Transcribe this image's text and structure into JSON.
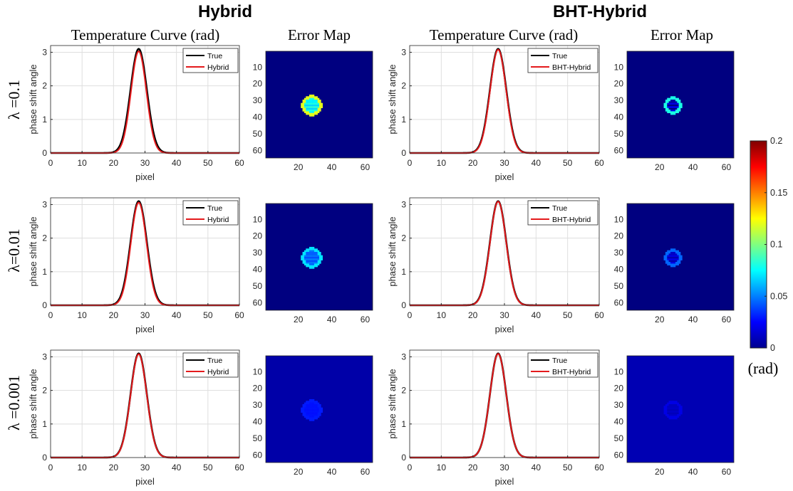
{
  "figure": {
    "section_titles": {
      "left": "Hybrid",
      "right": "BHT-Hybrid"
    },
    "column_titles": {
      "curve": "Temperature Curve (rad)",
      "map": "Error Map"
    },
    "row_labels": [
      "λ =0.1",
      "λ=0.01",
      "λ =0.001"
    ],
    "colorbar": {
      "min": 0,
      "max": 0.2,
      "ticks": [
        "0",
        "0.05",
        "0.1",
        "0.15",
        "0.2"
      ],
      "unit": "(rad)",
      "colormap": "jet"
    }
  },
  "chart_data": [
    {
      "type": "line",
      "method": "Hybrid",
      "lambda": "0.1",
      "xlabel": "pixel",
      "ylabel": "phase shift angle",
      "xlim": [
        0,
        60
      ],
      "ylim": [
        0,
        3.2
      ],
      "xticks": [
        "0",
        "10",
        "20",
        "30",
        "40",
        "50",
        "60"
      ],
      "yticks": [
        "0",
        "1",
        "2",
        "3"
      ],
      "legend": [
        "True",
        "Hybrid"
      ],
      "legend_position": "top-right",
      "grid": true,
      "series": [
        {
          "name": "True",
          "color": "#000000",
          "peak": 3.1,
          "center": 28,
          "sigma": 2.6
        },
        {
          "name": "Hybrid",
          "color": "#e41a1c",
          "peak": 3.03,
          "center": 28,
          "sigma": 2.45
        }
      ]
    },
    {
      "type": "heatmap",
      "method": "Hybrid",
      "lambda": "0.1",
      "title": "Error Map",
      "xlim": [
        0.5,
        64.5
      ],
      "ylim": [
        0.5,
        64.5
      ],
      "xticks": [
        "20",
        "40",
        "60"
      ],
      "yticks": [
        "10",
        "20",
        "30",
        "40",
        "50",
        "60"
      ],
      "clim": [
        0,
        0.2
      ],
      "background": 0.0,
      "disk": {
        "cx": 28,
        "cy": 33,
        "r": 5.5,
        "inner": 0.075,
        "rim": 0.12
      }
    },
    {
      "type": "line",
      "method": "BHT-Hybrid",
      "lambda": "0.1",
      "xlabel": "pixel",
      "ylabel": "phase shift angle",
      "xlim": [
        0,
        60
      ],
      "ylim": [
        0,
        3.2
      ],
      "xticks": [
        "0",
        "10",
        "20",
        "30",
        "40",
        "50",
        "60"
      ],
      "yticks": [
        "0",
        "1",
        "2",
        "3"
      ],
      "legend": [
        "True",
        "BHT-Hybrid"
      ],
      "legend_position": "top-right",
      "grid": true,
      "series": [
        {
          "name": "True",
          "color": "#000000",
          "peak": 3.1,
          "center": 28,
          "sigma": 2.6
        },
        {
          "name": "BHT-Hybrid",
          "color": "#e41a1c",
          "peak": 3.08,
          "center": 28,
          "sigma": 2.55
        }
      ]
    },
    {
      "type": "heatmap",
      "method": "BHT-Hybrid",
      "lambda": "0.1",
      "title": "Error Map",
      "xlim": [
        0.5,
        64.5
      ],
      "ylim": [
        0.5,
        64.5
      ],
      "xticks": [
        "20",
        "40",
        "60"
      ],
      "yticks": [
        "10",
        "20",
        "30",
        "40",
        "50",
        "60"
      ],
      "clim": [
        0,
        0.2
      ],
      "background": 0.0,
      "disk": {
        "cx": 28,
        "cy": 33,
        "r": 4.5,
        "inner": 0.01,
        "rim": 0.08
      }
    },
    {
      "type": "line",
      "method": "Hybrid",
      "lambda": "0.01",
      "xlabel": "pixel",
      "ylabel": "phase shift angle",
      "xlim": [
        0,
        60
      ],
      "ylim": [
        0,
        3.2
      ],
      "xticks": [
        "0",
        "10",
        "20",
        "30",
        "40",
        "50",
        "60"
      ],
      "yticks": [
        "0",
        "1",
        "2",
        "3"
      ],
      "legend": [
        "True",
        "Hybrid"
      ],
      "legend_position": "top-right",
      "grid": true,
      "series": [
        {
          "name": "True",
          "color": "#000000",
          "peak": 3.1,
          "center": 28,
          "sigma": 2.6
        },
        {
          "name": "Hybrid",
          "color": "#e41a1c",
          "peak": 3.06,
          "center": 28,
          "sigma": 2.5
        }
      ]
    },
    {
      "type": "heatmap",
      "method": "Hybrid",
      "lambda": "0.01",
      "title": "Error Map",
      "xlim": [
        0.5,
        64.5
      ],
      "ylim": [
        0.5,
        64.5
      ],
      "xticks": [
        "20",
        "40",
        "60"
      ],
      "yticks": [
        "10",
        "20",
        "30",
        "40",
        "50",
        "60"
      ],
      "clim": [
        0,
        0.2
      ],
      "background": 0.0,
      "disk": {
        "cx": 28,
        "cy": 33,
        "r": 5.5,
        "inner": 0.045,
        "rim": 0.07
      }
    },
    {
      "type": "line",
      "method": "BHT-Hybrid",
      "lambda": "0.01",
      "xlabel": "pixel",
      "ylabel": "phase shift angle",
      "xlim": [
        0,
        60
      ],
      "ylim": [
        0,
        3.2
      ],
      "xticks": [
        "0",
        "10",
        "20",
        "30",
        "40",
        "50",
        "60"
      ],
      "yticks": [
        "0",
        "1",
        "2",
        "3"
      ],
      "legend": [
        "True",
        "BHT-Hybrid"
      ],
      "legend_position": "top-right",
      "grid": true,
      "series": [
        {
          "name": "True",
          "color": "#000000",
          "peak": 3.1,
          "center": 28,
          "sigma": 2.6
        },
        {
          "name": "BHT-Hybrid",
          "color": "#e41a1c",
          "peak": 3.09,
          "center": 28,
          "sigma": 2.57
        }
      ]
    },
    {
      "type": "heatmap",
      "method": "BHT-Hybrid",
      "lambda": "0.01",
      "title": "Error Map",
      "xlim": [
        0.5,
        64.5
      ],
      "ylim": [
        0.5,
        64.5
      ],
      "xticks": [
        "20",
        "40",
        "60"
      ],
      "yticks": [
        "10",
        "20",
        "30",
        "40",
        "50",
        "60"
      ],
      "clim": [
        0,
        0.2
      ],
      "background": 0.0,
      "disk": {
        "cx": 28,
        "cy": 33,
        "r": 4.5,
        "inner": 0.015,
        "rim": 0.045
      }
    },
    {
      "type": "line",
      "method": "Hybrid",
      "lambda": "0.001",
      "xlabel": "pixel",
      "ylabel": "phase shift angle",
      "xlim": [
        0,
        60
      ],
      "ylim": [
        0,
        3.2
      ],
      "xticks": [
        "0",
        "10",
        "20",
        "30",
        "40",
        "50",
        "60"
      ],
      "yticks": [
        "0",
        "1",
        "2",
        "3"
      ],
      "legend": [
        "True",
        "Hybrid"
      ],
      "legend_position": "top-right",
      "grid": true,
      "series": [
        {
          "name": "True",
          "color": "#000000",
          "peak": 3.1,
          "center": 28,
          "sigma": 2.6
        },
        {
          "name": "Hybrid",
          "color": "#e41a1c",
          "peak": 3.08,
          "center": 28,
          "sigma": 2.58
        }
      ]
    },
    {
      "type": "heatmap",
      "method": "Hybrid",
      "lambda": "0.001",
      "title": "Error Map",
      "xlim": [
        0.5,
        64.5
      ],
      "ylim": [
        0.5,
        64.5
      ],
      "xticks": [
        "20",
        "40",
        "60"
      ],
      "yticks": [
        "10",
        "20",
        "30",
        "40",
        "50",
        "60"
      ],
      "clim": [
        0,
        0.2
      ],
      "background": 0.008,
      "disk": {
        "cx": 28,
        "cy": 33,
        "r": 5.5,
        "inner": 0.028,
        "rim": 0.03
      }
    },
    {
      "type": "line",
      "method": "BHT-Hybrid",
      "lambda": "0.001",
      "xlabel": "pixel",
      "ylabel": "phase shift angle",
      "xlim": [
        0,
        60
      ],
      "ylim": [
        0,
        3.2
      ],
      "xticks": [
        "0",
        "10",
        "20",
        "30",
        "40",
        "50",
        "60"
      ],
      "yticks": [
        "0",
        "1",
        "2",
        "3"
      ],
      "legend": [
        "True",
        "BHT-Hybrid"
      ],
      "legend_position": "top-right",
      "grid": true,
      "series": [
        {
          "name": "True",
          "color": "#000000",
          "peak": 3.1,
          "center": 28,
          "sigma": 2.6
        },
        {
          "name": "BHT-Hybrid",
          "color": "#e41a1c",
          "peak": 3.09,
          "center": 28,
          "sigma": 2.6
        }
      ]
    },
    {
      "type": "heatmap",
      "method": "BHT-Hybrid",
      "lambda": "0.001",
      "title": "Error Map",
      "xlim": [
        0.5,
        64.5
      ],
      "ylim": [
        0.5,
        64.5
      ],
      "xticks": [
        "20",
        "40",
        "60"
      ],
      "yticks": [
        "10",
        "20",
        "30",
        "40",
        "50",
        "60"
      ],
      "clim": [
        0,
        0.2
      ],
      "background": 0.01,
      "disk": {
        "cx": 28,
        "cy": 33,
        "r": 5,
        "inner": 0.013,
        "rim": 0.02
      }
    }
  ]
}
